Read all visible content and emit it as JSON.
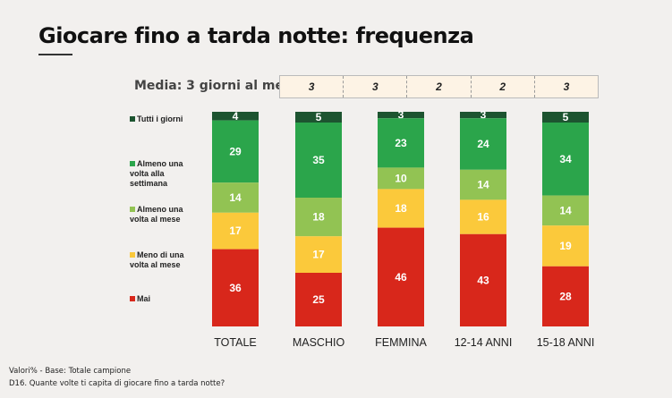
{
  "title": "Giocare fino a tarda notte: frequenza",
  "media": {
    "label": "Media: 3 giorni al mese",
    "values": [
      "3",
      "2",
      "2",
      "3"
    ]
  },
  "footnotes": [
    "Valori% - Base: Totale campione",
    "D16. Quante volte ti capita di giocare fino a tarda notte?"
  ],
  "chart_data": {
    "type": "bar",
    "stacked": true,
    "ylim": [
      0,
      100
    ],
    "categories": [
      "TOTALE",
      "MASCHIO",
      "FEMMINA",
      "12-14 ANNI",
      "15-18 ANNI"
    ],
    "media_values": [
      "3",
      "3",
      "2",
      "2",
      "3"
    ],
    "series": [
      {
        "name": "Tutti i giorni",
        "color": "#1d5430",
        "values": [
          4,
          5,
          3,
          3,
          5
        ]
      },
      {
        "name": "Almeno una volta alla settimana",
        "color": "#2ba54b",
        "values": [
          29,
          35,
          23,
          24,
          34
        ]
      },
      {
        "name": "Almeno una volta al mese",
        "color": "#92c353",
        "values": [
          14,
          18,
          10,
          14,
          14
        ]
      },
      {
        "name": "Meno di una volta al mese",
        "color": "#fbc93b",
        "values": [
          17,
          17,
          18,
          16,
          19
        ]
      },
      {
        "name": "Mai",
        "color": "#d8271b",
        "values": [
          36,
          25,
          46,
          43,
          28
        ]
      }
    ]
  }
}
